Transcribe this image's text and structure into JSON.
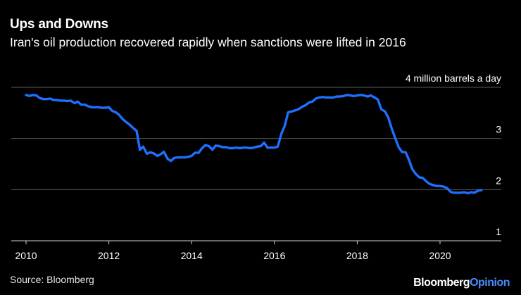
{
  "chart_data": {
    "type": "line",
    "title": "Ups and Downs",
    "subtitle": "Iran's oil production recovered rapidly when sanctions were lifted in 2016",
    "ylabel": "4 million barrels a day",
    "source": "Source: Bloomberg",
    "xlim": [
      2010,
      2021.5
    ],
    "ylim": [
      1,
      4
    ],
    "x_ticks": [
      2010,
      2012,
      2014,
      2016,
      2018,
      2020
    ],
    "x_tick_labels": [
      "2010",
      "2012",
      "2014",
      "2016",
      "2018",
      "2020"
    ],
    "y_ticks": [
      1,
      2,
      3,
      4
    ],
    "y_tick_labels": [
      "1",
      "2",
      "3",
      "4 million barrels a day"
    ],
    "line_color": "#1f6fff",
    "series": [
      {
        "name": "Iran oil production",
        "x": [
          2010.0,
          2010.08,
          2010.17,
          2010.25,
          2010.33,
          2010.42,
          2010.5,
          2010.58,
          2010.67,
          2010.75,
          2010.83,
          2010.92,
          2011.0,
          2011.08,
          2011.17,
          2011.25,
          2011.33,
          2011.42,
          2011.5,
          2011.58,
          2011.67,
          2011.75,
          2011.83,
          2011.92,
          2012.0,
          2012.08,
          2012.17,
          2012.25,
          2012.33,
          2012.42,
          2012.5,
          2012.58,
          2012.67,
          2012.75,
          2012.83,
          2012.92,
          2013.0,
          2013.08,
          2013.17,
          2013.25,
          2013.33,
          2013.42,
          2013.5,
          2013.58,
          2013.67,
          2013.75,
          2013.83,
          2013.92,
          2014.0,
          2014.08,
          2014.17,
          2014.25,
          2014.33,
          2014.42,
          2014.5,
          2014.58,
          2014.67,
          2014.75,
          2014.83,
          2014.92,
          2015.0,
          2015.08,
          2015.17,
          2015.25,
          2015.33,
          2015.42,
          2015.5,
          2015.58,
          2015.67,
          2015.75,
          2015.83,
          2015.92,
          2016.0,
          2016.08,
          2016.17,
          2016.25,
          2016.33,
          2016.42,
          2016.5,
          2016.58,
          2016.67,
          2016.75,
          2016.83,
          2016.92,
          2017.0,
          2017.08,
          2017.17,
          2017.25,
          2017.33,
          2017.42,
          2017.5,
          2017.58,
          2017.67,
          2017.75,
          2017.83,
          2017.92,
          2018.0,
          2018.08,
          2018.17,
          2018.25,
          2018.33,
          2018.42,
          2018.5,
          2018.58,
          2018.67,
          2018.75,
          2018.83,
          2018.92,
          2019.0,
          2019.08,
          2019.17,
          2019.25,
          2019.33,
          2019.42,
          2019.5,
          2019.58,
          2019.67,
          2019.75,
          2019.83,
          2019.92,
          2020.0,
          2020.08,
          2020.17,
          2020.25,
          2020.33,
          2020.42,
          2020.5,
          2020.58,
          2020.67,
          2020.75,
          2020.83,
          2020.92,
          2021.0
        ],
        "values": [
          3.85,
          3.83,
          3.85,
          3.84,
          3.79,
          3.77,
          3.77,
          3.78,
          3.75,
          3.75,
          3.74,
          3.74,
          3.73,
          3.74,
          3.69,
          3.72,
          3.66,
          3.66,
          3.63,
          3.61,
          3.61,
          3.61,
          3.6,
          3.6,
          3.61,
          3.54,
          3.51,
          3.46,
          3.38,
          3.32,
          3.27,
          3.21,
          3.15,
          2.78,
          2.84,
          2.7,
          2.73,
          2.71,
          2.66,
          2.69,
          2.74,
          2.6,
          2.56,
          2.62,
          2.63,
          2.63,
          2.63,
          2.64,
          2.66,
          2.72,
          2.72,
          2.81,
          2.87,
          2.85,
          2.78,
          2.86,
          2.85,
          2.83,
          2.83,
          2.81,
          2.81,
          2.82,
          2.81,
          2.82,
          2.82,
          2.81,
          2.82,
          2.84,
          2.85,
          2.92,
          2.82,
          2.82,
          2.82,
          2.84,
          3.1,
          3.25,
          3.51,
          3.53,
          3.55,
          3.57,
          3.62,
          3.65,
          3.7,
          3.72,
          3.78,
          3.8,
          3.81,
          3.8,
          3.8,
          3.8,
          3.82,
          3.82,
          3.83,
          3.85,
          3.84,
          3.83,
          3.84,
          3.85,
          3.84,
          3.82,
          3.84,
          3.8,
          3.76,
          3.57,
          3.53,
          3.41,
          3.2,
          3.0,
          2.83,
          2.74,
          2.73,
          2.58,
          2.4,
          2.3,
          2.24,
          2.23,
          2.16,
          2.11,
          2.09,
          2.07,
          2.07,
          2.06,
          2.03,
          1.96,
          1.94,
          1.94,
          1.94,
          1.95,
          1.93,
          1.95,
          1.94,
          1.98,
          1.99
        ]
      }
    ]
  },
  "branding": {
    "part1": "Bloomberg",
    "part2": "Opinion"
  }
}
